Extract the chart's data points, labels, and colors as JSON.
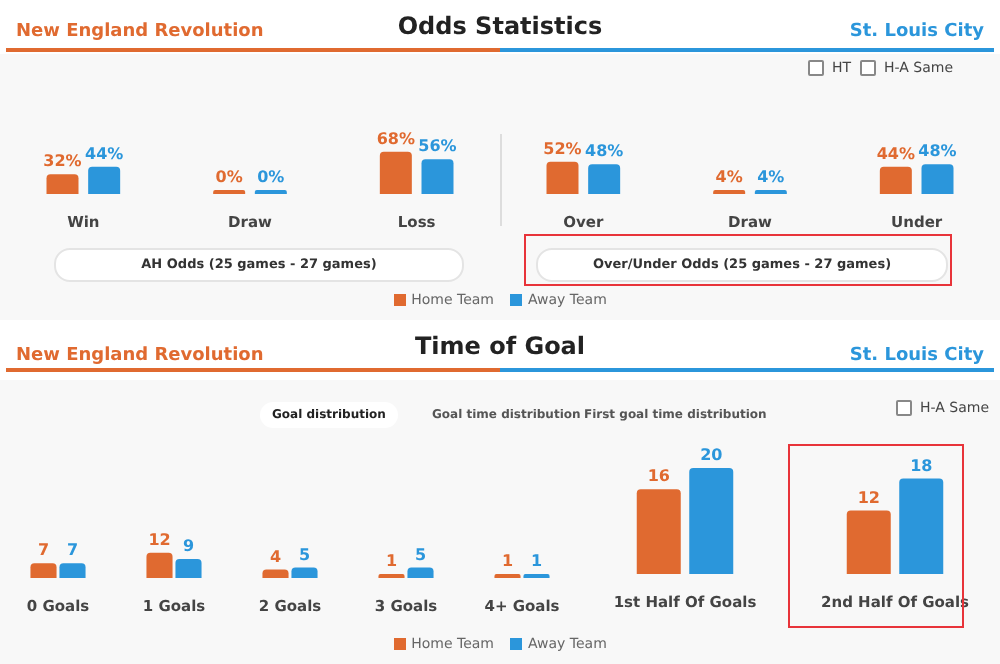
{
  "chart_data": [
    {
      "type": "bar",
      "title": "Odds Statistics",
      "xlabel": "AH Odds (25 games - 27 games)",
      "categories": [
        "Win",
        "Draw",
        "Loss"
      ],
      "legend": "bottom",
      "annotations": [
        "New England Revolution",
        "St. Louis City",
        "HT",
        "H-A Same"
      ],
      "series": [
        {
          "name": "Home Team",
          "color": "#e06a30",
          "values": [
            32,
            0,
            68
          ],
          "value_labels": [
            "32%",
            "0%",
            "68%"
          ]
        },
        {
          "name": "Away Team",
          "color": "#2b96db",
          "values": [
            44,
            0,
            56
          ],
          "value_labels": [
            "44%",
            "0%",
            "56%"
          ]
        }
      ]
    },
    {
      "type": "bar",
      "xlabel": "Over/Under Odds (25 games - 27 games)",
      "categories": [
        "Over",
        "Draw",
        "Under"
      ],
      "series": [
        {
          "color": "#e06a30",
          "values": [
            52,
            4,
            44
          ],
          "value_labels": [
            "52%",
            "4%",
            "44%"
          ]
        },
        {
          "color": "#2b96db",
          "values": [
            48,
            4,
            48
          ],
          "value_labels": [
            "48%",
            "4%",
            "48%"
          ]
        }
      ]
    },
    {
      "type": "bar",
      "title": "Time of Goal",
      "categories": [
        "0 Goals",
        "1 Goals",
        "2 Goals",
        "3 Goals",
        "4+ Goals"
      ],
      "legend": "bottom",
      "data_labels": true,
      "annotations": [
        "New England Revolution",
        "St. Louis City",
        "Goal distribution",
        "Goal time distribution",
        "First goal time distribution",
        "H-A Same"
      ],
      "series": [
        {
          "name": "Home Team",
          "color": "#e06a30",
          "values": [
            7,
            12,
            4,
            1,
            1
          ]
        },
        {
          "name": "Away Team",
          "color": "#2b96db",
          "values": [
            7,
            9,
            5,
            5,
            1
          ]
        }
      ]
    },
    {
      "type": "bar",
      "categories": [
        "1st Half Of Goals",
        "2nd Half Of Goals"
      ],
      "data_labels": true,
      "series": [
        {
          "color": "#e06a30",
          "values": [
            16,
            12
          ]
        },
        {
          "color": "#2b96db",
          "values": [
            20,
            18
          ]
        }
      ]
    }
  ]
}
